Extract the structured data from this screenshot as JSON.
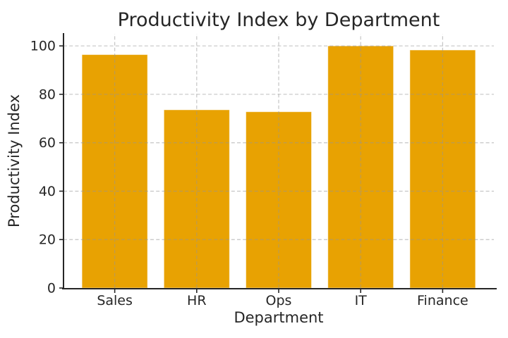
{
  "figure": {
    "background": "#ffffff"
  },
  "chart_data": {
    "type": "bar",
    "title": "Productivity Index by Department",
    "xlabel": "Department",
    "ylabel": "Productivity Index",
    "categories": [
      "Sales",
      "HR",
      "Ops",
      "IT",
      "Finance"
    ],
    "values": [
      96.4,
      73.6,
      72.8,
      100.0,
      98.3
    ],
    "yticks": [
      0,
      20,
      40,
      60,
      80,
      100
    ],
    "ylim": [
      0,
      105
    ],
    "bar_width_fraction": 0.8,
    "bar_color": "#E8A202",
    "bar_edge_color": "rgba(255,255,255,0.5)",
    "grid": "on",
    "grid_color": "rgba(150,150,150,0.55)",
    "grid_line_style": "dashed",
    "grid_above_bars": true,
    "axis_color": "#262626",
    "text_color": "#262626",
    "legend": "none"
  }
}
